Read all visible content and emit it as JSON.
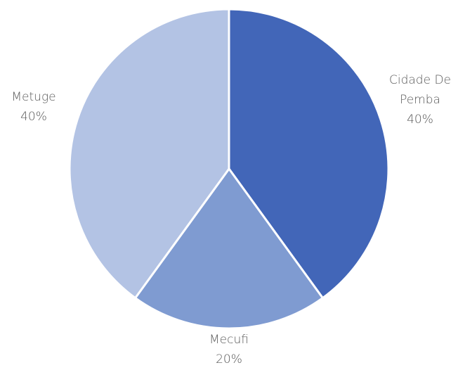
{
  "chart_data": {
    "type": "pie",
    "categories": [
      "Cidade De Pemba",
      "Mecufi",
      "Metuge"
    ],
    "values": [
      40,
      20,
      40
    ],
    "label_lines": [
      [
        "Cidade De",
        "Pemba",
        "40%"
      ],
      [
        "Mecufi",
        "20%"
      ],
      [
        "Metuge",
        "40%"
      ]
    ],
    "colors": [
      "#4266b8",
      "#7f9bd1",
      "#b3c3e4"
    ],
    "start_angle": "12 o'clock",
    "direction": "clockwise",
    "legend": "none"
  }
}
